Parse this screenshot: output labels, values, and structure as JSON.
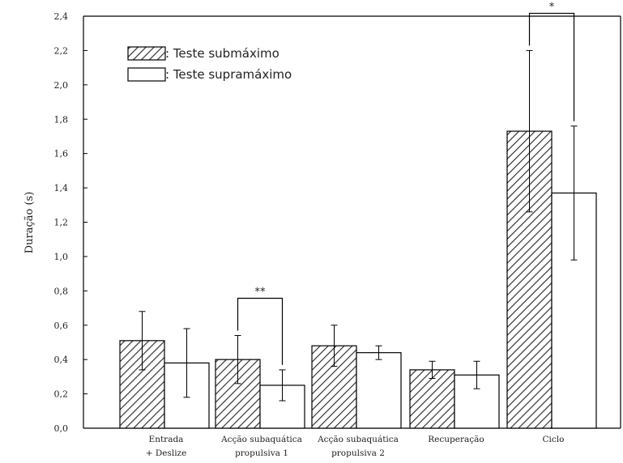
{
  "chart_data": {
    "type": "bar",
    "ylabel": "Duração (s)",
    "ylim": [
      0,
      2.4
    ],
    "ytick_step": 0.2,
    "yticks": [
      "0,0",
      "0,2",
      "0,4",
      "0,6",
      "0,8",
      "1,0",
      "1,2",
      "1,4",
      "1,6",
      "1,8",
      "2,0",
      "2,2",
      "2,4"
    ],
    "categories": [
      [
        "Entrada",
        "+ Deslize"
      ],
      [
        "Acção subaquática",
        "propulsiva 1"
      ],
      [
        "Acção subaquática",
        "propulsiva 2"
      ],
      [
        "Recuperação"
      ],
      [
        "Ciclo"
      ]
    ],
    "series": [
      {
        "name": ": Teste submáximo",
        "pattern": "hatched",
        "values": [
          0.51,
          0.4,
          0.48,
          0.34,
          1.73
        ],
        "errors": [
          0.17,
          0.14,
          0.12,
          0.05,
          0.47
        ]
      },
      {
        "name": ": Teste supramáximo",
        "pattern": "white",
        "values": [
          0.38,
          0.25,
          0.44,
          0.31,
          1.37
        ],
        "errors": [
          0.2,
          0.09,
          0.04,
          0.08,
          0.39
        ]
      }
    ],
    "significance": [
      {
        "category_index": 1,
        "label": "**"
      },
      {
        "category_index": 4,
        "label": "*"
      }
    ],
    "legend_position": "top-left",
    "grid": false
  }
}
